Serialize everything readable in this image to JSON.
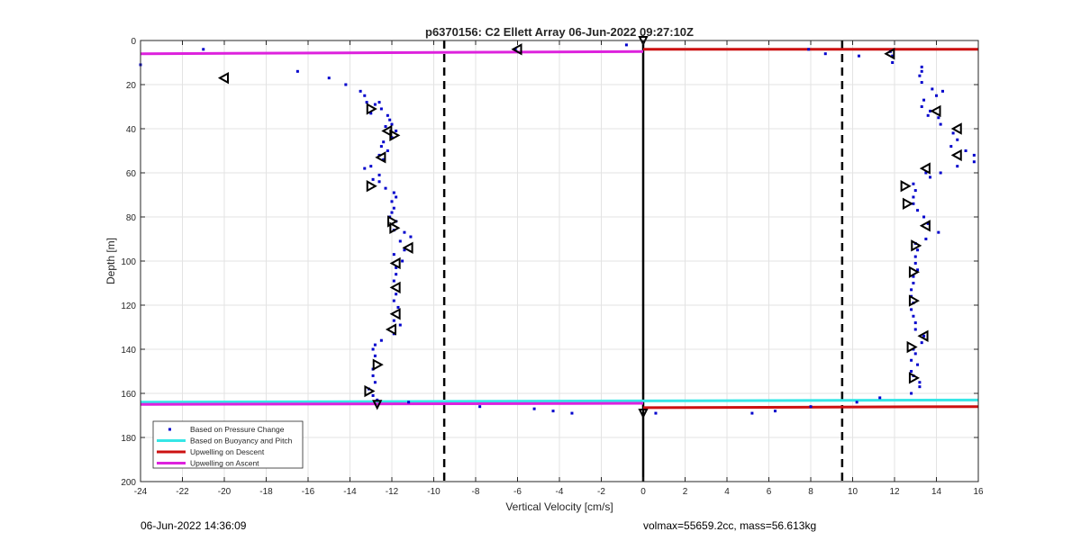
{
  "chart_data": {
    "type": "scatter",
    "title": "p6370156: C2 Ellett Array 06-Jun-2022 09:27:10Z",
    "xlabel": "Vertical Velocity [cm/s]",
    "ylabel": "Depth [m]",
    "xlim": [
      -24,
      16
    ],
    "ylim": [
      0,
      200
    ],
    "y_reversed": true,
    "grid": true,
    "xticks": [
      "-24",
      "-22",
      "-20",
      "-18",
      "-16",
      "-14",
      "-12",
      "-10",
      "-8",
      "-6",
      "-4",
      "-2",
      "0",
      "2",
      "4",
      "6",
      "8",
      "10",
      "12",
      "14",
      "16"
    ],
    "yticks": [
      "0",
      "20",
      "40",
      "60",
      "80",
      "100",
      "120",
      "140",
      "160",
      "180",
      "200"
    ],
    "legend_position": "bottom-left",
    "vlines": [
      {
        "x": -9.5,
        "style": "dashed",
        "color": "#000000"
      },
      {
        "x": 9.5,
        "style": "dashed",
        "color": "#000000"
      },
      {
        "x": 0,
        "style": "solid",
        "color": "#000000"
      }
    ],
    "series": [
      {
        "name": "Based on Pressure Change",
        "kind": "points",
        "color": "#0000cc",
        "points": [
          [
            -24,
            11
          ],
          [
            -21,
            4
          ],
          [
            -16.5,
            14
          ],
          [
            -15,
            17
          ],
          [
            -14.2,
            20
          ],
          [
            -13.5,
            23
          ],
          [
            -13.3,
            25
          ],
          [
            -13.2,
            28
          ],
          [
            -12.8,
            29
          ],
          [
            -12.6,
            28
          ],
          [
            -12.5,
            31
          ],
          [
            -13,
            33
          ],
          [
            -12.2,
            34
          ],
          [
            -12.1,
            36
          ],
          [
            -12,
            38
          ],
          [
            -12.3,
            39
          ],
          [
            -11.8,
            41
          ],
          [
            -12,
            44
          ],
          [
            -12.4,
            46
          ],
          [
            -12.5,
            48
          ],
          [
            -12.2,
            50
          ],
          [
            -12.6,
            52
          ],
          [
            -12.4,
            54
          ],
          [
            -13.3,
            58
          ],
          [
            -13,
            57
          ],
          [
            -12.6,
            61
          ],
          [
            -12.9,
            63
          ],
          [
            -12.6,
            64
          ],
          [
            -12.3,
            67
          ],
          [
            -11.9,
            69
          ],
          [
            -11.8,
            71
          ],
          [
            -12,
            73
          ],
          [
            -11.9,
            76
          ],
          [
            -12,
            78
          ],
          [
            -12.1,
            80
          ],
          [
            -11.8,
            82
          ],
          [
            -11.9,
            86
          ],
          [
            -11.4,
            87
          ],
          [
            -11.1,
            89
          ],
          [
            -11.6,
            91
          ],
          [
            -11.4,
            95
          ],
          [
            -11.9,
            97
          ],
          [
            -11.5,
            100
          ],
          [
            -11.8,
            103
          ],
          [
            -11.8,
            106
          ],
          [
            -11.9,
            109
          ],
          [
            -11.8,
            115
          ],
          [
            -11.9,
            118
          ],
          [
            -11.7,
            121
          ],
          [
            -11.9,
            127
          ],
          [
            -11.6,
            129
          ],
          [
            -11.9,
            133
          ],
          [
            -12.5,
            136
          ],
          [
            -12.8,
            138
          ],
          [
            -12.9,
            140
          ],
          [
            -12.8,
            143
          ],
          [
            -12.9,
            149
          ],
          [
            -12.9,
            152
          ],
          [
            -12.8,
            155
          ],
          [
            -13.1,
            158
          ],
          [
            -12.9,
            161
          ],
          [
            -12.7,
            163
          ],
          [
            -11.2,
            164
          ],
          [
            -7.8,
            166
          ],
          [
            -5.2,
            167
          ],
          [
            -4.3,
            168
          ],
          [
            -3.4,
            169
          ],
          [
            0.6,
            169
          ],
          [
            5.2,
            169
          ],
          [
            6.3,
            168
          ],
          [
            8,
            166
          ],
          [
            10.2,
            164
          ],
          [
            11.3,
            162
          ],
          [
            12.8,
            160
          ],
          [
            13.2,
            157
          ],
          [
            13.2,
            155
          ],
          [
            12.9,
            152
          ],
          [
            12.8,
            150
          ],
          [
            13.1,
            147
          ],
          [
            12.8,
            145
          ],
          [
            13,
            142
          ],
          [
            12.9,
            140
          ],
          [
            13.3,
            137
          ],
          [
            13.4,
            134
          ],
          [
            13,
            131
          ],
          [
            13,
            128
          ],
          [
            12.9,
            125
          ],
          [
            12.8,
            122
          ],
          [
            12.9,
            119
          ],
          [
            12.8,
            116
          ],
          [
            12.8,
            113
          ],
          [
            12.9,
            110
          ],
          [
            12.9,
            107
          ],
          [
            13.1,
            104
          ],
          [
            13,
            101
          ],
          [
            13,
            98
          ],
          [
            13.1,
            95
          ],
          [
            13,
            92
          ],
          [
            13.5,
            90
          ],
          [
            14.1,
            87
          ],
          [
            13.6,
            83
          ],
          [
            13.4,
            80
          ],
          [
            13.1,
            77
          ],
          [
            12.9,
            74
          ],
          [
            12.9,
            71
          ],
          [
            13,
            68
          ],
          [
            12.9,
            65
          ],
          [
            13.7,
            62
          ],
          [
            13.5,
            60
          ],
          [
            14.2,
            60
          ],
          [
            15,
            57
          ],
          [
            15.8,
            55
          ],
          [
            15.8,
            52
          ],
          [
            15.4,
            50
          ],
          [
            14.7,
            48
          ],
          [
            15,
            45
          ],
          [
            14.8,
            42
          ],
          [
            14.2,
            38
          ],
          [
            14.1,
            35
          ],
          [
            13.6,
            34
          ],
          [
            13.7,
            32
          ],
          [
            13.3,
            30
          ],
          [
            13.4,
            27
          ],
          [
            14,
            25
          ],
          [
            14.3,
            23
          ],
          [
            13.8,
            22
          ],
          [
            13.3,
            19
          ],
          [
            13.2,
            16
          ],
          [
            13.3,
            14
          ],
          [
            13.3,
            12
          ],
          [
            11.9,
            10
          ],
          [
            11.9,
            7
          ],
          [
            11.8,
            5
          ],
          [
            10.3,
            7
          ],
          [
            8.7,
            6
          ],
          [
            7.9,
            4
          ],
          [
            -0.8,
            2
          ],
          [
            -6.1,
            4
          ]
        ]
      },
      {
        "name": "Based on Buoyancy and Pitch",
        "kind": "line",
        "color": "#36e6e6",
        "points": [
          [
            -24,
            164
          ],
          [
            16,
            163
          ]
        ]
      },
      {
        "name": "Upwelling on Descent",
        "kind": "line",
        "color": "#cc1111",
        "points": [
          [
            0,
            4
          ],
          [
            16,
            4
          ],
          [
            0,
            166.5
          ],
          [
            16,
            166
          ]
        ]
      },
      {
        "name": "Upwelling on Ascent",
        "kind": "line",
        "color": "#dd22dd",
        "points": [
          [
            -24,
            6
          ],
          [
            0,
            5
          ],
          [
            -24,
            165
          ],
          [
            0,
            164.5
          ]
        ]
      }
    ],
    "markers": [
      {
        "kind": "triangle-left",
        "color": "#000000",
        "points": [
          [
            -20,
            17
          ],
          [
            -6,
            4
          ],
          [
            11.8,
            6
          ],
          [
            -12.2,
            41
          ],
          [
            -12.5,
            53
          ],
          [
            15,
            40
          ],
          [
            14,
            32
          ],
          [
            15,
            52
          ],
          [
            13.5,
            58
          ],
          [
            -11.2,
            94
          ],
          [
            -11.8,
            101
          ],
          [
            -11.8,
            112
          ],
          [
            -11.8,
            124
          ],
          [
            -12,
            131
          ],
          [
            13.5,
            84
          ],
          [
            13.4,
            134
          ]
        ]
      },
      {
        "kind": "triangle-right",
        "color": "#000000",
        "points": [
          [
            -13,
            31
          ],
          [
            -11.9,
            43
          ],
          [
            -13,
            66
          ],
          [
            -12,
            82
          ],
          [
            -11.9,
            85
          ],
          [
            -12.7,
            147
          ],
          [
            -13.1,
            159
          ],
          [
            12.5,
            66
          ],
          [
            12.6,
            74
          ],
          [
            13,
            93
          ],
          [
            12.9,
            105
          ],
          [
            12.9,
            118
          ],
          [
            12.8,
            139
          ],
          [
            12.9,
            153
          ]
        ]
      },
      {
        "kind": "triangle-down",
        "color": "#000000",
        "points": [
          [
            0,
            0
          ],
          [
            -12.7,
            165
          ],
          [
            0,
            169
          ]
        ]
      }
    ]
  },
  "legend": [
    {
      "label": "Based on Pressure Change",
      "kind": "points",
      "color": "#0000cc"
    },
    {
      "label": "Based on Buoyancy and Pitch",
      "kind": "line",
      "color": "#36e6e6"
    },
    {
      "label": "Upwelling on Descent",
      "kind": "line",
      "color": "#cc1111"
    },
    {
      "label": "Upwelling on Ascent",
      "kind": "line",
      "color": "#dd22dd"
    }
  ],
  "footer": {
    "timestamp": "06-Jun-2022 14:36:09",
    "info": "volmax=55659.2cc, mass=56.613kg"
  }
}
